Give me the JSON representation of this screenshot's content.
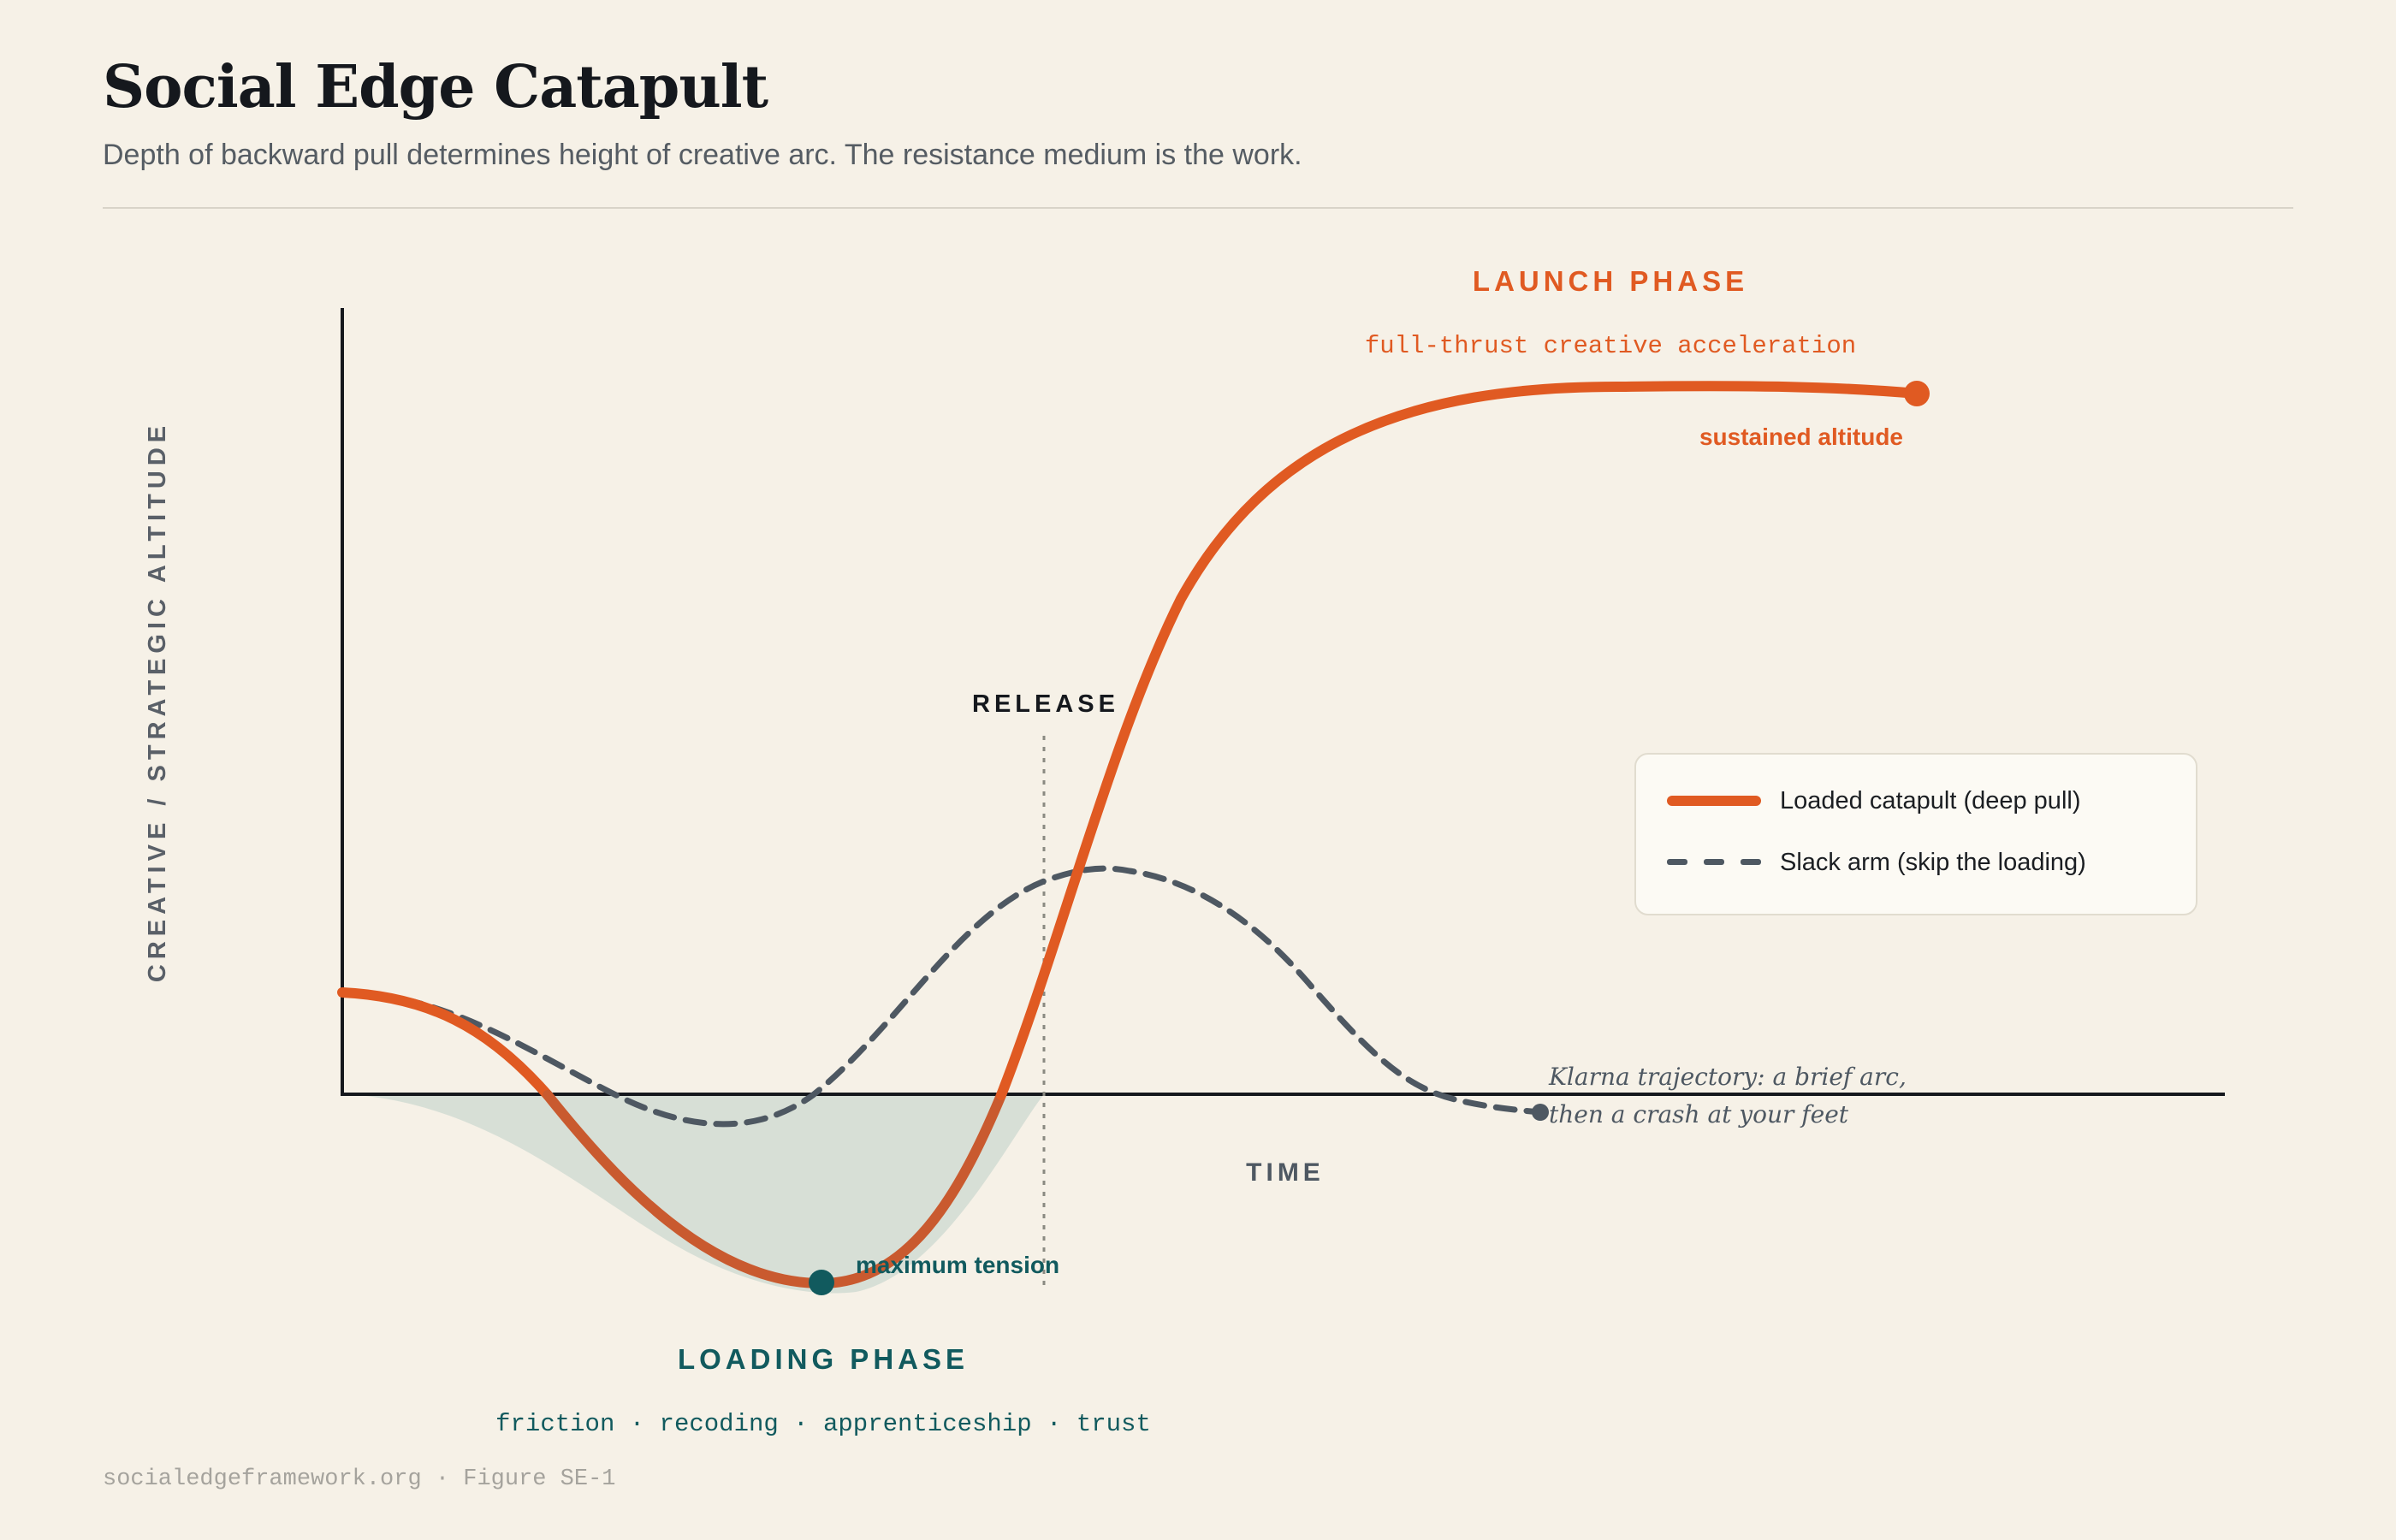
{
  "title": "Social Edge Catapult",
  "subtitle": "Depth of backward pull determines height of creative arc. The resistance medium is the work.",
  "axes": {
    "y_label": "CREATIVE / STRATEGIC ALTITUDE",
    "x_label": "TIME"
  },
  "annotations": {
    "launch_phase": "LAUNCH PHASE",
    "launch_sub": "full-thrust creative acceleration",
    "sustained": "sustained altitude",
    "release": "RELEASE",
    "max_tension": "maximum tension",
    "loading_phase": "LOADING PHASE",
    "loading_sub": "friction · recoding · apprenticeship · trust",
    "klarna_line1": "Klarna trajectory: a brief arc,",
    "klarna_line2": "then a crash at your feet"
  },
  "legend": {
    "loaded": "Loaded catapult (deep pull)",
    "slack": "Slack arm (skip the loading)"
  },
  "colors": {
    "loaded": "#e05a22",
    "slack": "#4e5862",
    "loading": "#115a5e",
    "shade": "#d5ddd5",
    "axis": "#15181d"
  },
  "footer": "socialedgeframework.org · Figure SE-1"
}
